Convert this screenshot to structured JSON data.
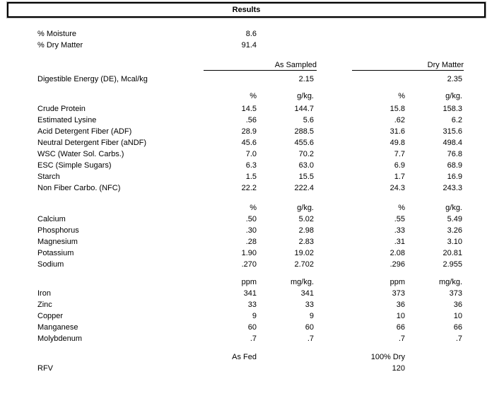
{
  "title": "Results",
  "colors": {
    "text": "#000000",
    "background": "#ffffff",
    "box_border": "#000000",
    "box_outline": "#a6a6a6"
  },
  "moisture": {
    "rows": [
      {
        "label": "% Moisture",
        "value": "8.6"
      },
      {
        "label": "% Dry Matter",
        "value": "91.4"
      }
    ]
  },
  "column_headers": {
    "as_sampled": "As Sampled",
    "dry_matter": "Dry Matter"
  },
  "energy": {
    "label": "Digestible Energy (DE), Mcal/kg",
    "as_sampled": "2.15",
    "dry_matter": "2.35"
  },
  "sections": [
    {
      "units": [
        "%",
        "g/kg.",
        "%",
        "g/kg."
      ],
      "rows": [
        [
          "Crude Protein",
          "14.5",
          "144.7",
          "15.8",
          "158.3"
        ],
        [
          "Estimated Lysine",
          ".56",
          "5.6",
          ".62",
          "6.2"
        ],
        [
          "Acid Detergent Fiber (ADF)",
          "28.9",
          "288.5",
          "31.6",
          "315.6"
        ],
        [
          "Neutral Detergent Fiber (aNDF)",
          "45.6",
          "455.6",
          "49.8",
          "498.4"
        ],
        [
          "WSC (Water Sol. Carbs.)",
          "7.0",
          "70.2",
          "7.7",
          "76.8"
        ],
        [
          "ESC (Simple Sugars)",
          "6.3",
          "63.0",
          "6.9",
          "68.9"
        ],
        [
          "Starch",
          "1.5",
          "15.5",
          "1.7",
          "16.9"
        ],
        [
          "Non Fiber Carbo. (NFC)",
          "22.2",
          "222.4",
          "24.3",
          "243.3"
        ]
      ]
    },
    {
      "units": [
        "%",
        "g/kg.",
        "%",
        "g/kg."
      ],
      "rows": [
        [
          "Calcium",
          ".50",
          "5.02",
          ".55",
          "5.49"
        ],
        [
          "Phosphorus",
          ".30",
          "2.98",
          ".33",
          "3.26"
        ],
        [
          "Magnesium",
          ".28",
          "2.83",
          ".31",
          "3.10"
        ],
        [
          "Potassium",
          "1.90",
          "19.02",
          "2.08",
          "20.81"
        ],
        [
          "Sodium",
          ".270",
          "2.702",
          ".296",
          "2.955"
        ]
      ]
    },
    {
      "units": [
        "ppm",
        "mg/kg.",
        "ppm",
        "mg/kg."
      ],
      "rows": [
        [
          "Iron",
          "341",
          "341",
          "373",
          "373"
        ],
        [
          "Zinc",
          "33",
          "33",
          "36",
          "36"
        ],
        [
          "Copper",
          "9",
          "9",
          "10",
          "10"
        ],
        [
          "Manganese",
          "60",
          "60",
          "66",
          "66"
        ],
        [
          "Molybdenum",
          ".7",
          ".7",
          ".7",
          ".7"
        ]
      ]
    }
  ],
  "footer": {
    "as_fed": "As Fed",
    "hundred_dry": "100% Dry",
    "rfv": {
      "label": "RFV",
      "value": "120"
    }
  }
}
